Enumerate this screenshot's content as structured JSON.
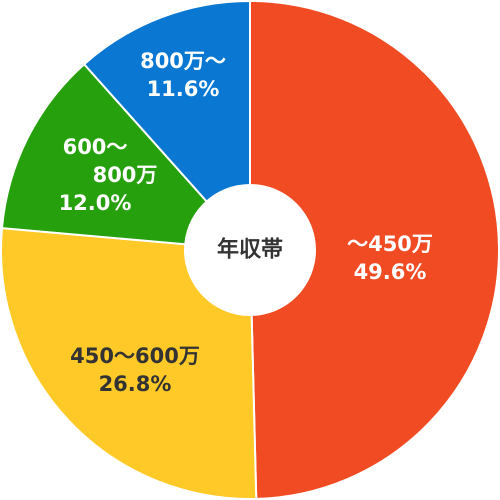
{
  "chart_data": {
    "type": "pie",
    "title": "",
    "center_label": "年収帯",
    "slices": [
      {
        "label_lines": [
          "～450万"
        ],
        "value": 49.6,
        "value_text": "49.6%",
        "color": "#F04B23",
        "text_color": "#ffffff"
      },
      {
        "label_lines": [
          "450～600万"
        ],
        "value": 26.8,
        "value_text": "26.8%",
        "color": "#FFCA28",
        "text_color": "#333333"
      },
      {
        "label_lines": [
          "600～",
          "800万"
        ],
        "value": 12.0,
        "value_text": "12.0%",
        "color": "#27A00E",
        "text_color": "#ffffff"
      },
      {
        "label_lines": [
          "800万～"
        ],
        "value": 11.6,
        "value_text": "11.6%",
        "color": "#0A78D2",
        "text_color": "#ffffff"
      }
    ]
  }
}
